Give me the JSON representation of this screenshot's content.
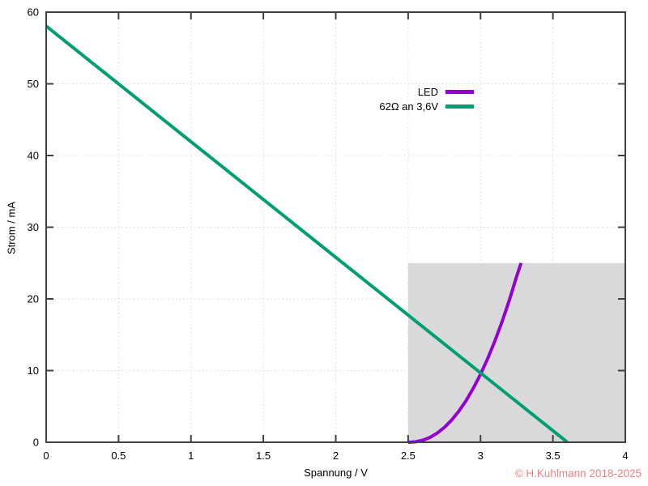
{
  "watermark": {
    "text": "© H.Kuhlmann 2018-2025",
    "color": "#f68080"
  },
  "chart_data": {
    "type": "line",
    "title": "",
    "xlabel": "Spannung / V",
    "ylabel": "Strom / mA",
    "xlim": [
      0,
      4
    ],
    "ylim": [
      0,
      60
    ],
    "xticks": [
      0,
      0.5,
      1,
      1.5,
      2,
      2.5,
      3,
      3.5,
      4
    ],
    "xtick_labels": [
      "0",
      "0.5",
      "1",
      "1.5",
      "2",
      "2.5",
      "3",
      "3.5",
      "4"
    ],
    "yticks": [
      0,
      10,
      20,
      30,
      40,
      50,
      60
    ],
    "ytick_labels": [
      "0",
      "10",
      "20",
      "30",
      "40",
      "50",
      "60"
    ],
    "grid": true,
    "grid_style": "dotted",
    "grid_color": "#d6d6d6",
    "axis_color": "#404040",
    "text_color": "#000000",
    "legend_position": "top-right-inside",
    "region": {
      "label": "operating-area",
      "x0": 2.5,
      "x1": 4.0,
      "y0": 0,
      "y1": 25,
      "color": "#d9d9d9"
    },
    "series": [
      {
        "name": "LED",
        "slug": "led-curve",
        "color": "#9400d3",
        "width": 4,
        "points": [
          [
            2.5,
            0
          ],
          [
            2.55,
            0.06
          ],
          [
            2.6,
            0.28
          ],
          [
            2.65,
            0.67
          ],
          [
            2.7,
            1.26
          ],
          [
            2.75,
            2.07
          ],
          [
            2.8,
            3.08
          ],
          [
            2.85,
            4.33
          ],
          [
            2.9,
            5.81
          ],
          [
            2.95,
            7.53
          ],
          [
            3.0,
            9.49
          ],
          [
            3.05,
            11.71
          ],
          [
            3.1,
            14.17
          ],
          [
            3.15,
            16.9
          ],
          [
            3.2,
            19.89
          ],
          [
            3.25,
            23.16
          ],
          [
            3.28,
            25
          ]
        ]
      },
      {
        "name": "62Ω an 3,6V",
        "slug": "resistor-load-line",
        "color": "#009e73",
        "width": 4,
        "points": [
          [
            0,
            58.06
          ],
          [
            3.6,
            0
          ]
        ]
      }
    ]
  }
}
